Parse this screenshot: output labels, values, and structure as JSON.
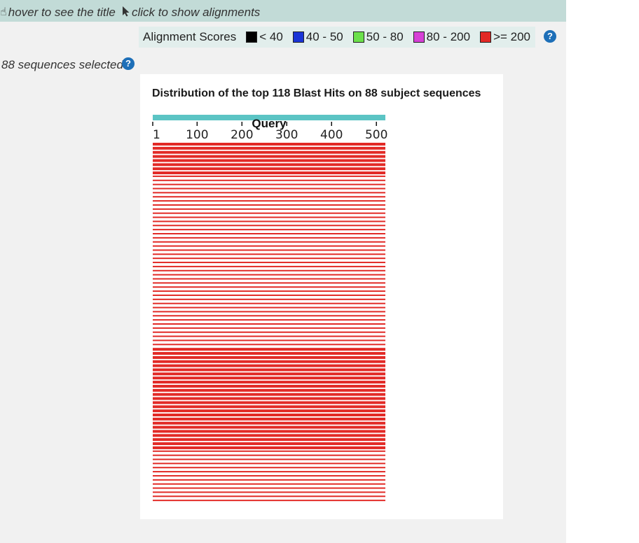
{
  "hints": {
    "hover_text": "hover to see the title",
    "click_text": "click to show alignments"
  },
  "legend": {
    "title": "Alignment Scores",
    "items": [
      {
        "label": "< 40",
        "color": "#000000"
      },
      {
        "label": "40 - 50",
        "color": "#1a34d6"
      },
      {
        "label": "50 - 80",
        "color": "#6be04b"
      },
      {
        "label": "80 - 200",
        "color": "#d640d6"
      },
      {
        "label": ">= 200",
        "color": "#e22a26"
      }
    ]
  },
  "selection": {
    "text": "88 sequences selected"
  },
  "help_icon_glyph": "?",
  "chart_data": {
    "type": "alignment-bars",
    "title": "Distribution of the top 118 Blast Hits on 88 subject sequences",
    "query_label": "Query",
    "query_range": [
      1,
      520
    ],
    "ticks": [
      1,
      100,
      200,
      300,
      400,
      500
    ],
    "query_bar_color": "#5bc4c4",
    "hit_color": "#e22a26",
    "hit_score_category": ">= 200",
    "hits_start": 1,
    "hits_end": 520,
    "rows": 88
  }
}
